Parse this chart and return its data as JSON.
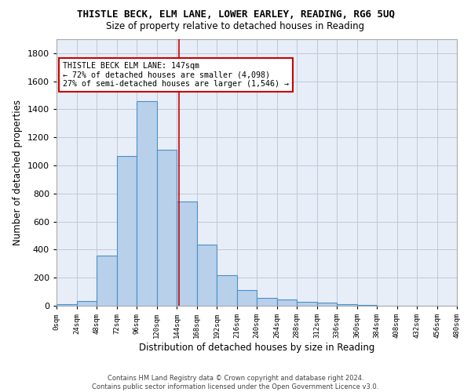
{
  "title": "THISTLE BECK, ELM LANE, LOWER EARLEY, READING, RG6 5UQ",
  "subtitle": "Size of property relative to detached houses in Reading",
  "xlabel": "Distribution of detached houses by size in Reading",
  "ylabel": "Number of detached properties",
  "bar_values": [
    10,
    35,
    355,
    1065,
    1460,
    1110,
    745,
    435,
    220,
    110,
    55,
    45,
    30,
    20,
    10,
    5,
    0,
    0,
    0,
    0
  ],
  "bin_edges": [
    0,
    24,
    48,
    72,
    96,
    120,
    144,
    168,
    192,
    216,
    240,
    264,
    288,
    312,
    336,
    360,
    384,
    408,
    432,
    456,
    480
  ],
  "tick_labels": [
    "0sqm",
    "24sqm",
    "48sqm",
    "72sqm",
    "96sqm",
    "120sqm",
    "144sqm",
    "168sqm",
    "192sqm",
    "216sqm",
    "240sqm",
    "264sqm",
    "288sqm",
    "312sqm",
    "336sqm",
    "360sqm",
    "384sqm",
    "408sqm",
    "432sqm",
    "456sqm",
    "480sqm"
  ],
  "vline_x": 147,
  "bar_color": "#b8d0ea",
  "bar_edge_color": "#4a90c8",
  "vline_color": "#cc0000",
  "annotation_title": "THISTLE BECK ELM LANE: 147sqm",
  "annotation_line1": "← 72% of detached houses are smaller (4,098)",
  "annotation_line2": "27% of semi-detached houses are larger (1,546) →",
  "annotation_box_facecolor": "#ffffff",
  "annotation_box_edgecolor": "#cc0000",
  "ylim": [
    0,
    1900
  ],
  "yticks": [
    0,
    200,
    400,
    600,
    800,
    1000,
    1200,
    1400,
    1600,
    1800
  ],
  "bg_color": "#ffffff",
  "plot_bg_color": "#e8eef8",
  "grid_color": "#c0c8d8",
  "footer_line1": "Contains HM Land Registry data © Crown copyright and database right 2024.",
  "footer_line2": "Contains public sector information licensed under the Open Government Licence v3.0."
}
